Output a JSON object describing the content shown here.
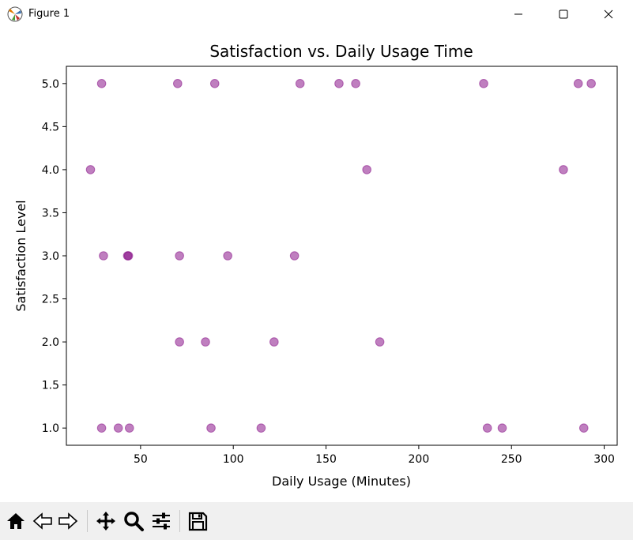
{
  "window": {
    "title": "Figure 1"
  },
  "icons": {
    "app": "matplotlib-icon",
    "minimize": "minimize-icon",
    "maximize": "maximize-icon",
    "close": "close-icon"
  },
  "toolbar": {
    "buttons": [
      "home-icon",
      "back-icon",
      "forward-icon",
      "pan-icon",
      "zoom-icon",
      "configure-icon",
      "save-icon"
    ]
  },
  "colors": {
    "point": "#800080"
  },
  "chart_data": {
    "type": "scatter",
    "title": "Satisfaction vs. Daily Usage Time",
    "xlabel": "Daily Usage (Minutes)",
    "ylabel": "Satisfaction Level",
    "xlim": [
      10,
      307
    ],
    "ylim": [
      0.8,
      5.2
    ],
    "xticks": [
      50,
      100,
      150,
      200,
      250,
      300
    ],
    "yticks": [
      1.0,
      1.5,
      2.0,
      2.5,
      3.0,
      3.5,
      4.0,
      4.5,
      5.0
    ],
    "xtick_labels": [
      "50",
      "100",
      "150",
      "200",
      "250",
      "300"
    ],
    "ytick_labels": [
      "1.0",
      "1.5",
      "2.0",
      "2.5",
      "3.0",
      "3.5",
      "4.0",
      "4.5",
      "5.0"
    ],
    "grid": false,
    "point_alpha": 0.5,
    "points": [
      {
        "x": 29,
        "y": 5
      },
      {
        "x": 70,
        "y": 5
      },
      {
        "x": 90,
        "y": 5
      },
      {
        "x": 136,
        "y": 5
      },
      {
        "x": 157,
        "y": 5
      },
      {
        "x": 166,
        "y": 5
      },
      {
        "x": 235,
        "y": 5
      },
      {
        "x": 286,
        "y": 5
      },
      {
        "x": 293,
        "y": 5
      },
      {
        "x": 23,
        "y": 4
      },
      {
        "x": 172,
        "y": 4
      },
      {
        "x": 278,
        "y": 4
      },
      {
        "x": 30,
        "y": 3
      },
      {
        "x": 43,
        "y": 3
      },
      {
        "x": 43.5,
        "y": 3
      },
      {
        "x": 71,
        "y": 3
      },
      {
        "x": 97,
        "y": 3
      },
      {
        "x": 133,
        "y": 3
      },
      {
        "x": 71,
        "y": 2
      },
      {
        "x": 85,
        "y": 2
      },
      {
        "x": 122,
        "y": 2
      },
      {
        "x": 179,
        "y": 2
      },
      {
        "x": 29,
        "y": 1
      },
      {
        "x": 38,
        "y": 1
      },
      {
        "x": 44,
        "y": 1
      },
      {
        "x": 88,
        "y": 1
      },
      {
        "x": 115,
        "y": 1
      },
      {
        "x": 237,
        "y": 1
      },
      {
        "x": 245,
        "y": 1
      },
      {
        "x": 289,
        "y": 1
      }
    ]
  }
}
